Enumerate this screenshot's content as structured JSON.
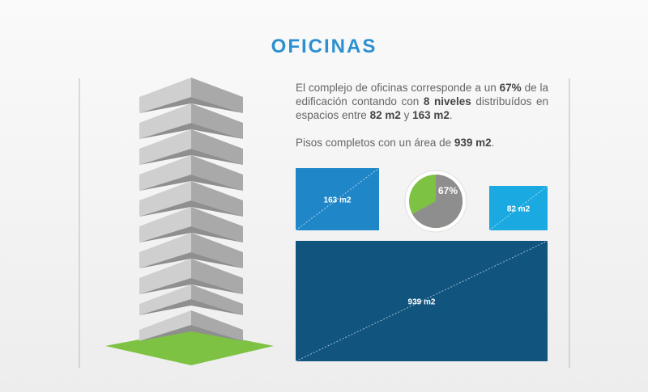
{
  "title": "OFICINAS",
  "paragraphs": [
    [
      {
        "text": "El complejo de oficinas corresponde a un ",
        "bold": false
      },
      {
        "text": "67%",
        "bold": true
      },
      {
        "text": " de la edificación contando con ",
        "bold": false
      },
      {
        "text": "8 niveles",
        "bold": true
      },
      {
        "text": " distribuídos en espacios entre ",
        "bold": false
      },
      {
        "text": "82 m2",
        "bold": true
      },
      {
        "text": " y ",
        "bold": false
      },
      {
        "text": "163 m2",
        "bold": true
      },
      {
        "text": ".",
        "bold": false
      }
    ],
    [
      {
        "text": "Pisos completos con un área de ",
        "bold": false
      },
      {
        "text": "939 m2",
        "bold": true
      },
      {
        "text": ".",
        "bold": false
      }
    ]
  ],
  "boxes": [
    {
      "label": "163 m2",
      "color": "#1f86c8"
    },
    {
      "label": "82 m2",
      "color": "#1aa9e0"
    },
    {
      "label": "939 m2",
      "color": "#11547e"
    }
  ],
  "pie": {
    "value": 67,
    "label": "67%",
    "color": "#8e8e8e",
    "rest_color": "#7dc242"
  }
}
